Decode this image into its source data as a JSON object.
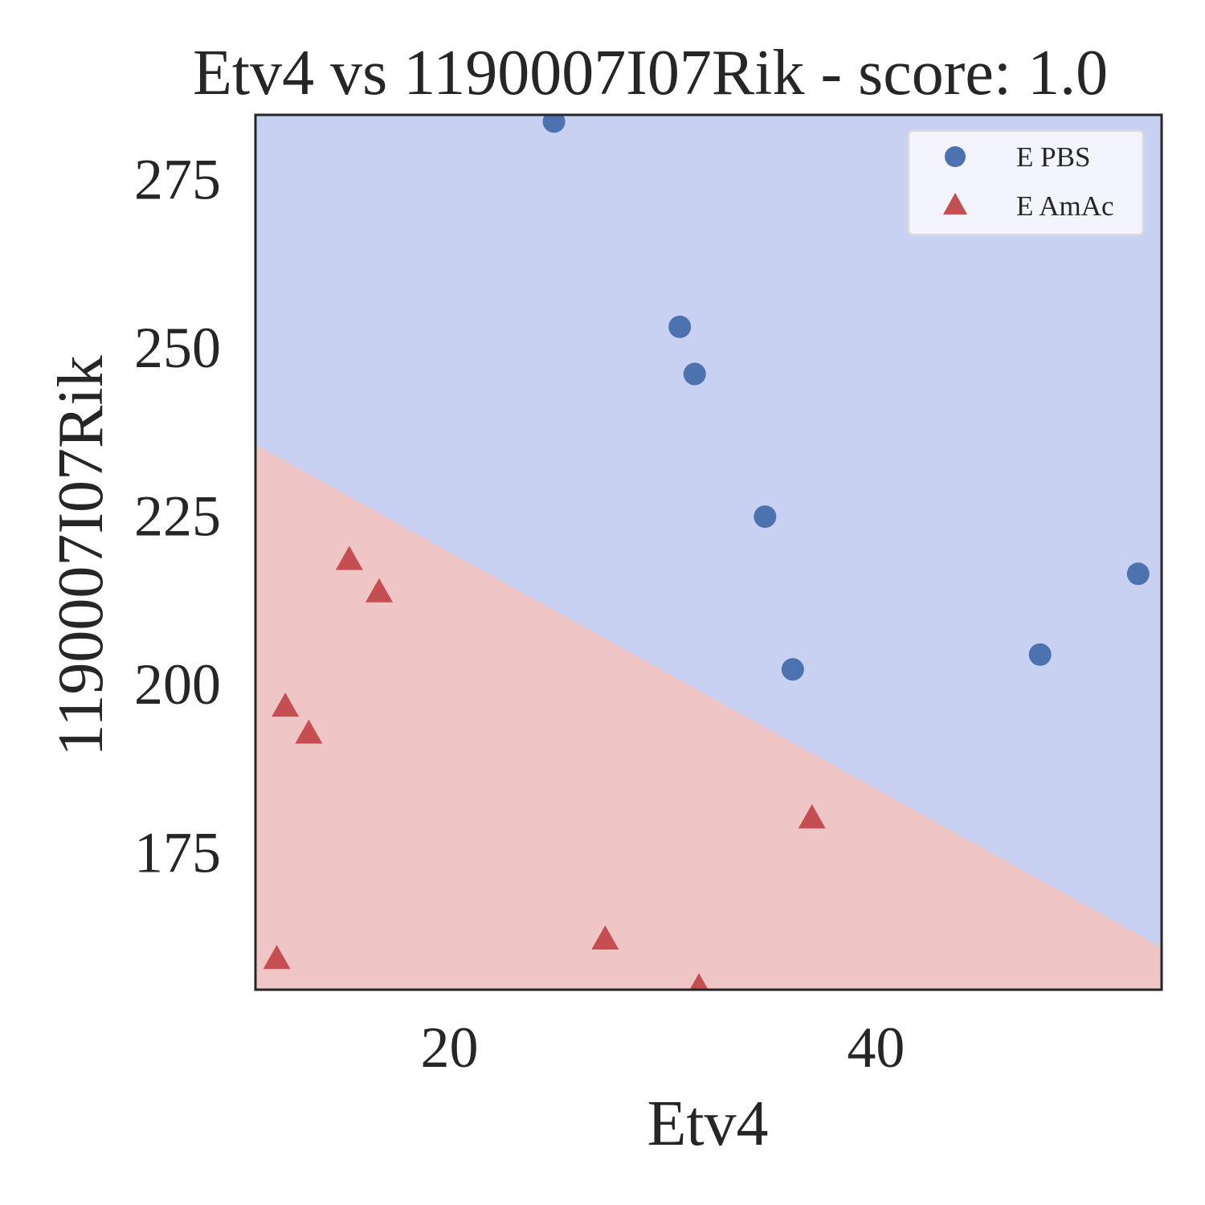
{
  "chart_data": {
    "type": "scatter",
    "title": "Etv4 vs 1190007I07Rik - score: 1.0",
    "xlabel": "Etv4",
    "ylabel": "1190007I07Rik",
    "xlim": [
      10.9,
      53.4
    ],
    "ylim": [
      154.5,
      284.5
    ],
    "xticks": [
      20,
      40
    ],
    "yticks": [
      175,
      200,
      225,
      250,
      275
    ],
    "grid": false,
    "legend_position": "upper right",
    "decision_boundary": {
      "description_points": [
        [
          10.9,
          235.5
        ],
        [
          53.4,
          160.8
        ]
      ],
      "upper_region": "E PBS",
      "lower_region": "E AmAc"
    },
    "colors": {
      "series_pbs": "#4c72b0",
      "series_amac": "#c44e52",
      "region_pbs": "#c8d1f1",
      "region_amac": "#efc5c5",
      "axes": "#262626"
    },
    "series": [
      {
        "name": "E PBS",
        "marker": "circle",
        "points": [
          [
            24.9,
            283.5
          ],
          [
            30.8,
            253.0
          ],
          [
            31.5,
            246.0
          ],
          [
            34.8,
            224.8
          ],
          [
            36.1,
            202.1
          ],
          [
            47.7,
            204.3
          ],
          [
            52.3,
            216.3
          ]
        ]
      },
      {
        "name": "E AmAc",
        "marker": "triangle",
        "points": [
          [
            15.3,
            218.3
          ],
          [
            16.7,
            213.5
          ],
          [
            12.3,
            196.5
          ],
          [
            13.4,
            192.5
          ],
          [
            37.0,
            179.9
          ],
          [
            11.9,
            159.0
          ],
          [
            27.3,
            161.9
          ],
          [
            31.7,
            154.8
          ]
        ]
      }
    ]
  }
}
